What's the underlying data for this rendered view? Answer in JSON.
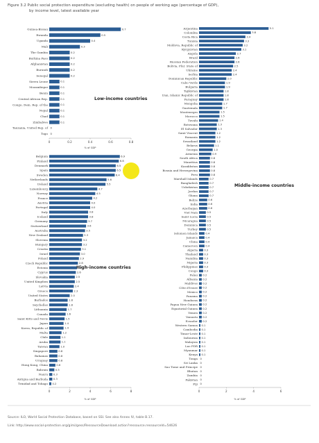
{
  "figure": {
    "title_line1": "Figure 3.2  Public social protection expenditure (excluding health) on people of working age (percentage of GDP),",
    "title_line2": "by income level, latest available year",
    "source_line": "Source: ILO, World Social Protection Database, based on SSI. See also Annex IV, table B.17.",
    "link_line": "Link: http://www.social-protection.org/gimi/gess/RessourceDownload.action?ressource.ressourceId=54626"
  },
  "colors": {
    "bar": "#2b5d94",
    "highlight": "#f3e400",
    "axis": "#999999"
  },
  "chart_data": [
    {
      "type": "bar",
      "orientation": "horizontal",
      "annotation": "Low-income countries",
      "xlabel": "% of GDP",
      "xlim": [
        0,
        0.8
      ],
      "xticks": [
        "0",
        "0.2",
        "0.4",
        "0.6",
        "0.8"
      ],
      "categories": [
        "Guinea-Bissau",
        "Rwanda",
        "Uganda",
        "Mali",
        "The Gambia",
        "Burkina Faso",
        "Afghanistan",
        "Burundi",
        "Senegal",
        "Sierra Leone",
        "Mozambique",
        "Benin",
        "Central African Rep.",
        "Congo, Dem. Rep. of the",
        "Nepal",
        "Chad",
        "Zimbabwe",
        "Tanzania, United Rep. of",
        "Togo"
      ],
      "values": [
        0.7,
        0.5,
        0.4,
        0.3,
        0.2,
        0.2,
        0.2,
        0.2,
        0.2,
        0.1,
        0.1,
        0.1,
        0.1,
        0.1,
        0.1,
        0.1,
        0.1,
        0,
        0
      ],
      "labels": [
        "0.7",
        "0.5",
        "0.4",
        "0.3",
        "0.2",
        "0.2",
        "0.2",
        "0.2",
        "0.2",
        "0.1",
        "0.1",
        "0.1",
        "0.1",
        "0.1",
        "0.1",
        "0.1",
        "0.1",
        "0",
        "0"
      ]
    },
    {
      "type": "bar",
      "orientation": "horizontal",
      "annotation": "High-income countries",
      "xlabel": "% of GDP",
      "xlim": [
        0,
        8
      ],
      "xticks": [
        "0",
        "2",
        "4",
        "6",
        "8"
      ],
      "categories": [
        "Belgium",
        "Finland",
        "Denmark",
        "Spain",
        "Sweden",
        "Netherlands",
        "Ireland",
        "Luxembourg",
        "Norway",
        "France",
        "Austria",
        "Portugal",
        "Italy",
        "Iceland",
        "Germany",
        "Switzerland",
        "Australia",
        "New Zealand",
        "Slovenia",
        "Hungary",
        "Croatia",
        "Israel",
        "Poland",
        "Czech Republic",
        "Estonia",
        "Cyprus",
        "Slovakia",
        "United Kingdom",
        "Latvia",
        "Greece",
        "United States",
        "Barbados",
        "Seychelles",
        "Lithuania",
        "Canada",
        "Saint Kitts and Nevis",
        "Japan",
        "Korea, Republic of",
        "Malta",
        "Chile",
        "Aruba",
        "Taiwan",
        "Singapore",
        "Bahamas",
        "Uruguay",
        "Hong Kong, China",
        "Bahrain",
        "Nauru",
        "Antigua and Barbuda",
        "Trinidad and Tobago"
      ],
      "values": [
        6.9,
        6.8,
        6.5,
        6.5,
        6.4,
        5.6,
        5.5,
        4.7,
        4.5,
        4.2,
        4.0,
        4.0,
        3.8,
        3.8,
        3.7,
        3.6,
        3.5,
        3.3,
        3.2,
        3.2,
        3.1,
        3.0,
        2.9,
        2.8,
        2.7,
        2.6,
        2.5,
        2.5,
        2.4,
        2.3,
        2.0,
        1.8,
        1.8,
        1.7,
        1.6,
        1.5,
        1.4,
        1.4,
        1.2,
        1.1,
        1.1,
        1.0,
        0.8,
        0.8,
        0.8,
        0.6,
        0.5,
        0.3,
        0.3,
        0.2
      ],
      "labels": [
        "6.9",
        "6.8",
        "6.5",
        "6.5",
        "6.4",
        "5.6",
        "5.5",
        "4.7",
        "4.5",
        "4.2",
        "4.0",
        "4.0",
        "3.8",
        "3.8",
        "3.7",
        "3.6",
        "3.5",
        "3.3",
        "3.2",
        "3.2",
        "3.1",
        "3.0",
        "2.9",
        "2.8",
        "2.7",
        "2.6",
        "2.5",
        "2.5",
        "2.4",
        "2.3",
        "2.0",
        "1.8",
        "1.8",
        "1.7",
        "1.6",
        "1.5",
        "1.4",
        "1.4",
        "1.2",
        "1.1",
        "1.1",
        "1.0",
        "0.8",
        "0.8",
        "0.8",
        "0.6",
        "0.5",
        "0.3",
        "0.3",
        "0.2"
      ]
    },
    {
      "type": "bar",
      "orientation": "horizontal",
      "annotation": "Middle-income countries",
      "xlabel": "% of GDP",
      "xlim": [
        0,
        6
      ],
      "xticks": [
        "0",
        "2",
        "4",
        "6"
      ],
      "categories": [
        "Argentina",
        "Colombia",
        "Costa Rica",
        "Tunisia",
        "Moldova, Republic of",
        "Kyrgyzstan",
        "Angola",
        "Brazil",
        "Russian Federation",
        "Bolivia, Plur. State of",
        "Ukraine",
        "Serbia",
        "Dominican Republic",
        "Cabo Verde",
        "Bulgaria",
        "Tajikistan",
        "Iran, Islamic Republic of",
        "Paraguay",
        "Mongolia",
        "Guatemala",
        "Montenegro",
        "Morocco",
        "Tuvalu",
        "Botswana",
        "El Salvador",
        "Saint Vincent",
        "Romania",
        "Swaziland",
        "Belarus",
        "Georgia",
        "Armenia",
        "South Africa",
        "Mauritius",
        "Kazakhstan",
        "Bosnia and Herzegovina",
        "Peru",
        "Marshall Islands",
        "Bangladesh",
        "Uzbekistan",
        "Jordan",
        "Ghana",
        "Belize",
        "India",
        "Azerbaijan",
        "Viet Nam",
        "Saint Lucia",
        "Nicaragua",
        "Dominica",
        "Turkey",
        "Solomon Islands",
        "Jamaica",
        "China",
        "Cameroon",
        "Algeria",
        "Thailand",
        "Namibia",
        "Nigeria",
        "Philippines",
        "Congo",
        "Palau",
        "Albania",
        "Maldives",
        "Côte d'Ivoire",
        "Mexico",
        "Panama",
        "Honduras",
        "Papua New Guinea",
        "Equatorial Guinea",
        "Yemen",
        "Vanuatu",
        "Ecuador",
        "Western Samoa",
        "Cambodia",
        "Timor-Leste",
        "Indonesia",
        "Malaysia",
        "Lao PDR",
        "Myanmar",
        "Kenya",
        "Tonga",
        "Sri Lanka",
        "Sao Tome and Principe",
        "Bhutan",
        "Zambia",
        "Pakistan",
        "Fiji"
      ],
      "values": [
        5.1,
        3.8,
        3.4,
        3.3,
        3.2,
        3.1,
        2.7,
        2.6,
        2.6,
        2.5,
        2.4,
        2.4,
        2.0,
        1.9,
        1.9,
        1.8,
        1.8,
        1.8,
        1.7,
        1.7,
        1.5,
        1.5,
        1.4,
        1.3,
        1.3,
        1.2,
        1.2,
        1.2,
        1.1,
        1.0,
        0.9,
        0.8,
        0.8,
        0.8,
        0.8,
        0.8,
        0.7,
        0.7,
        0.7,
        0.7,
        0.7,
        0.6,
        0.6,
        0.6,
        0.5,
        0.5,
        0.5,
        0.5,
        0.5,
        0.4,
        0.4,
        0.4,
        0.4,
        0.3,
        0.3,
        0.3,
        0.3,
        0.3,
        0.3,
        0.2,
        0.2,
        0.2,
        0.2,
        0.2,
        0.2,
        0.2,
        0.2,
        0.2,
        0.2,
        0.2,
        0.2,
        0.1,
        0.1,
        0.1,
        0.1,
        0.1,
        0.1,
        0.1,
        0.1,
        0,
        0,
        0,
        0,
        0,
        0,
        0
      ],
      "labels": [
        "5.1",
        "3.8",
        "3.4",
        "3.3",
        "3.2",
        "3.1",
        "2.7",
        "2.6",
        "2.6",
        "2.5",
        "2.4",
        "2.4",
        "2.0",
        "1.9",
        "1.9",
        "1.8",
        "1.8",
        "1.8",
        "1.7",
        "1.7",
        "1.5",
        "1.5",
        "1.4",
        "1.3",
        "1.3",
        "1.2",
        "1.2",
        "1.2",
        "1.1",
        "1.0",
        "0.9",
        "0.8",
        "0.8",
        "0.8",
        "0.8",
        "0.8",
        "0.7",
        "0.7",
        "0.7",
        "0.7",
        "0.7",
        "0.6",
        "0.6",
        "0.6",
        "0.5",
        "0.5",
        "0.5",
        "0.5",
        "0.5",
        "0.4",
        "0.4",
        "0.4",
        "0.4",
        "0.3",
        "0.3",
        "0.3",
        "0.3",
        "0.3",
        "0.3",
        "0.2",
        "0.2",
        "0.2",
        "0.2",
        "0.2",
        "0.2",
        "0.2",
        "0.2",
        "0.2",
        "0.2",
        "0.2",
        "0.2",
        "0.1",
        "0.1",
        "0.1",
        "0.1",
        "0.1",
        "0.1",
        "0.1",
        "0.1",
        "0",
        "0",
        "0",
        "0",
        "0",
        "0",
        "0"
      ]
    }
  ]
}
